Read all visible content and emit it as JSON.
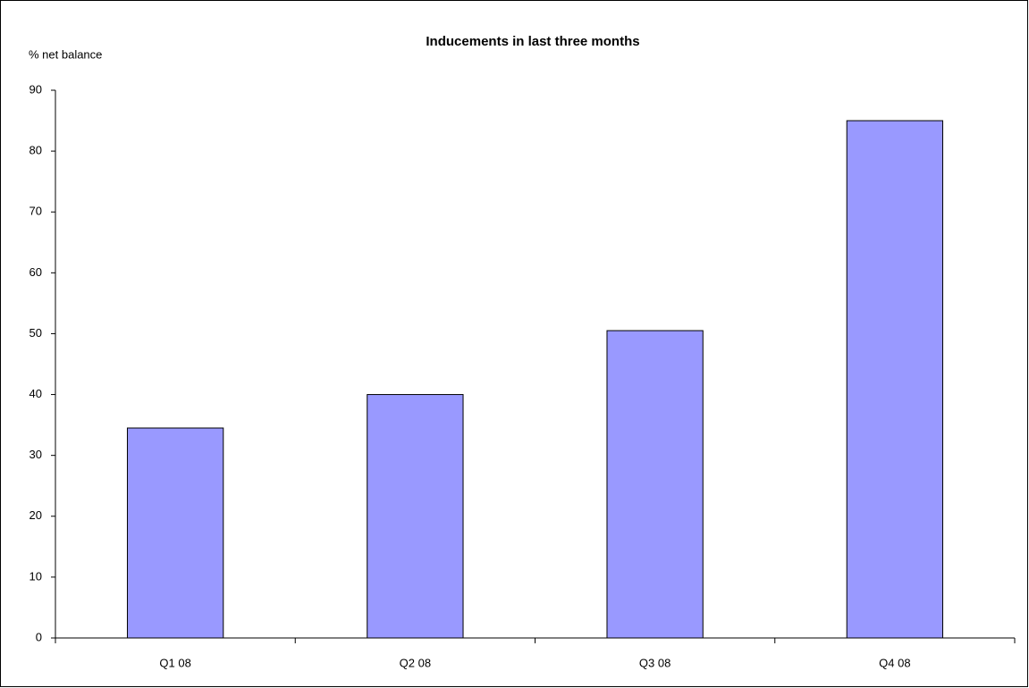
{
  "chart_data": {
    "type": "bar",
    "title": "Inducements in last three months",
    "y_axis_label": "% net balance",
    "categories": [
      "Q1 08",
      "Q2 08",
      "Q3 08",
      "Q4 08"
    ],
    "values": [
      34.5,
      40,
      50.5,
      85
    ],
    "color": "#9999ff",
    "ylim": [
      0,
      90
    ],
    "yticks": [
      0,
      10,
      20,
      30,
      40,
      50,
      60,
      70,
      80,
      90
    ],
    "grid": false
  }
}
